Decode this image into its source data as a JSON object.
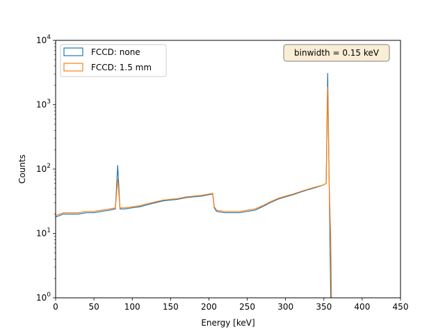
{
  "chart_data": {
    "type": "line",
    "xlabel": "Energy [keV]",
    "ylabel": "Counts",
    "xlim": [
      0,
      450
    ],
    "ylim": [
      1,
      10000
    ],
    "yscale": "log",
    "grid": false,
    "legend_placement": "top-left",
    "x_ticks": [
      0,
      50,
      100,
      150,
      200,
      250,
      300,
      350,
      400,
      450
    ],
    "x_tick_labels": [
      "0",
      "50",
      "100",
      "150",
      "200",
      "250",
      "300",
      "350",
      "400",
      "450"
    ],
    "y_ticks": [
      1,
      10,
      100,
      1000,
      10000
    ],
    "y_tick_labels": [
      {
        "base": "10",
        "exp": "0"
      },
      {
        "base": "10",
        "exp": "1"
      },
      {
        "base": "10",
        "exp": "2"
      },
      {
        "base": "10",
        "exp": "3"
      },
      {
        "base": "10",
        "exp": "4"
      }
    ],
    "annotation": "binwidth = 0.15 keV",
    "series": [
      {
        "name": "FCCD: none",
        "color": "#1f77b4",
        "x": [
          0,
          10,
          20,
          30,
          40,
          50,
          60,
          70,
          78,
          81,
          84,
          90,
          100,
          110,
          120,
          130,
          140,
          150,
          160,
          170,
          180,
          190,
          200,
          205,
          207,
          210,
          220,
          230,
          240,
          250,
          260,
          270,
          280,
          290,
          300,
          310,
          320,
          330,
          340,
          350,
          353,
          355,
          357,
          359,
          360
        ],
        "values": [
          18,
          20,
          20,
          20,
          21,
          21,
          22,
          23,
          24,
          115,
          24,
          24,
          25,
          26,
          28,
          30,
          32,
          33,
          34,
          36,
          37,
          38,
          40,
          41,
          25,
          22,
          21,
          21,
          21,
          22,
          23,
          26,
          30,
          34,
          37,
          40,
          44,
          48,
          52,
          57,
          60,
          3100,
          55,
          1,
          1
        ]
      },
      {
        "name": "FCCD: 1.5 mm",
        "color": "#ff7f0e",
        "x": [
          0,
          10,
          20,
          30,
          40,
          50,
          60,
          70,
          78,
          81,
          84,
          90,
          100,
          110,
          120,
          130,
          140,
          150,
          160,
          170,
          180,
          190,
          200,
          205,
          207,
          210,
          220,
          230,
          240,
          250,
          260,
          270,
          280,
          290,
          300,
          310,
          320,
          330,
          340,
          350,
          353,
          355,
          357,
          359,
          360
        ],
        "values": [
          19,
          21,
          21,
          21,
          22,
          22,
          23,
          24,
          25,
          70,
          25,
          25,
          26,
          27,
          29,
          31,
          33,
          34,
          35,
          37,
          38,
          39,
          41,
          42,
          26,
          23,
          22,
          22,
          22,
          23,
          24,
          27,
          31,
          35,
          38,
          41,
          45,
          49,
          53,
          57,
          60,
          1900,
          55,
          8,
          1
        ]
      }
    ]
  }
}
